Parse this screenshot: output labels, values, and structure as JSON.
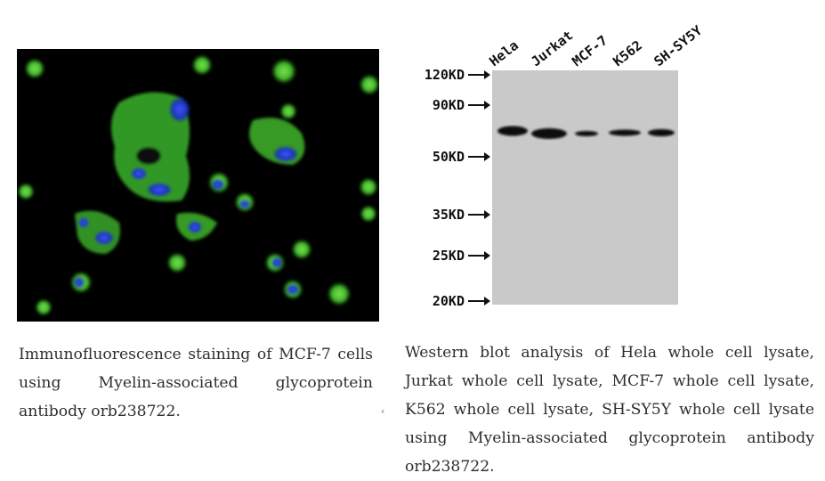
{
  "if_figure": {
    "caption": "Immunofluorescence staining of MCF-7 cells using Myelin-associated glycoprotein antibody orb238722.",
    "colors": {
      "cytoplasm": "#3ec22a",
      "nucleus": "#1f3fd0",
      "background": "#000000"
    }
  },
  "wb_figure": {
    "lanes": [
      "Hela",
      "Jurkat",
      "MCF-7",
      "K562",
      "SH-SY5Y"
    ],
    "markers": [
      {
        "label": "120KD"
      },
      {
        "label": "90KD"
      },
      {
        "label": "50KD"
      },
      {
        "label": "35KD"
      },
      {
        "label": "25KD"
      },
      {
        "label": "20KD"
      }
    ],
    "caption": "Western blot analysis of Hela whole cell lysate, Jurkat whole cell lysate, MCF-7 whole cell lysate, K562 whole cell lysate, SH-SY5Y whole cell lysate using Myelin-associated glycoprotein antibody orb238722.",
    "colors": {
      "membrane": "#c9c9c9",
      "band": "#0d0d0d"
    }
  }
}
